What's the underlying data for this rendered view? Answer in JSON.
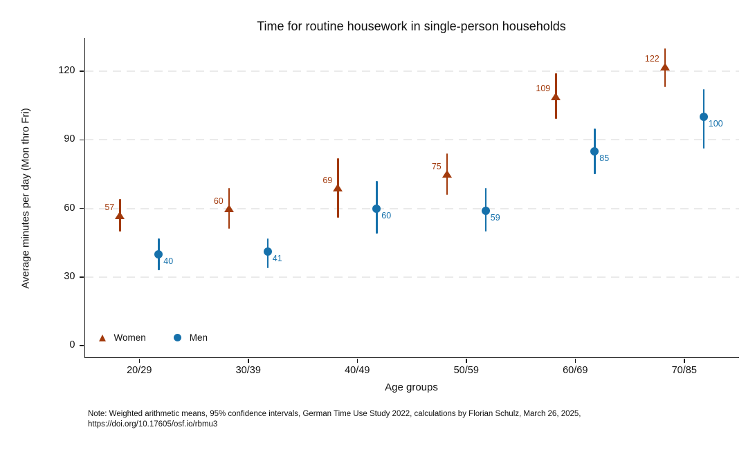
{
  "chart_data": {
    "type": "scatter",
    "title": "Time for routine housework in single-person households",
    "xlabel": "Age groups",
    "ylabel": "Average minutes per day (Mon thro Fri)",
    "categories": [
      "20/29",
      "30/39",
      "40/49",
      "50/59",
      "60/69",
      "70/85"
    ],
    "yticks": [
      0,
      30,
      60,
      90,
      120
    ],
    "ylim": [
      0,
      134
    ],
    "grid": "horizontal-dashed",
    "legend_position": "bottom-left-inside",
    "series": [
      {
        "name": "Women",
        "marker": "triangle",
        "color": "#A23A0C",
        "values": [
          57,
          60,
          69,
          75,
          109,
          122
        ],
        "ci_low": [
          50,
          51,
          56,
          66,
          99,
          113
        ],
        "ci_high": [
          64,
          69,
          82,
          84,
          119,
          130
        ]
      },
      {
        "name": "Men",
        "marker": "circle",
        "color": "#1671AB",
        "values": [
          40,
          41,
          60,
          59,
          85,
          100
        ],
        "ci_low": [
          33,
          34,
          49,
          50,
          75,
          86
        ],
        "ci_high": [
          47,
          47,
          72,
          69,
          95,
          112
        ]
      }
    ],
    "note_line1": "Note: Weighted arithmetic means, 95% confidence intervals, German Time Use Study 2022, calculations by Florian Schulz, March 26, 2025,",
    "note_line2": "https://doi.org/10.17605/osf.io/rbmu3"
  }
}
